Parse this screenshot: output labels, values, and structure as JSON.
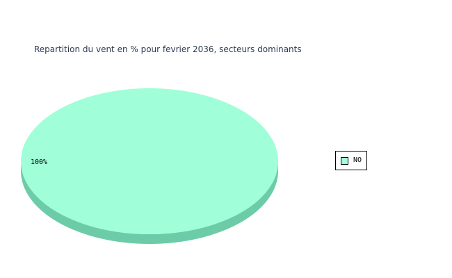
{
  "chart_data": {
    "type": "pie",
    "title": "Repartition du vent en % pour fevrier 2036, secteurs dominants",
    "slices": [
      {
        "name": "NO",
        "value": 100,
        "label": "100%",
        "color": "#a0ffd8",
        "side_color": "#6ccca8"
      }
    ],
    "legend_placement": "right",
    "three_d": true
  }
}
